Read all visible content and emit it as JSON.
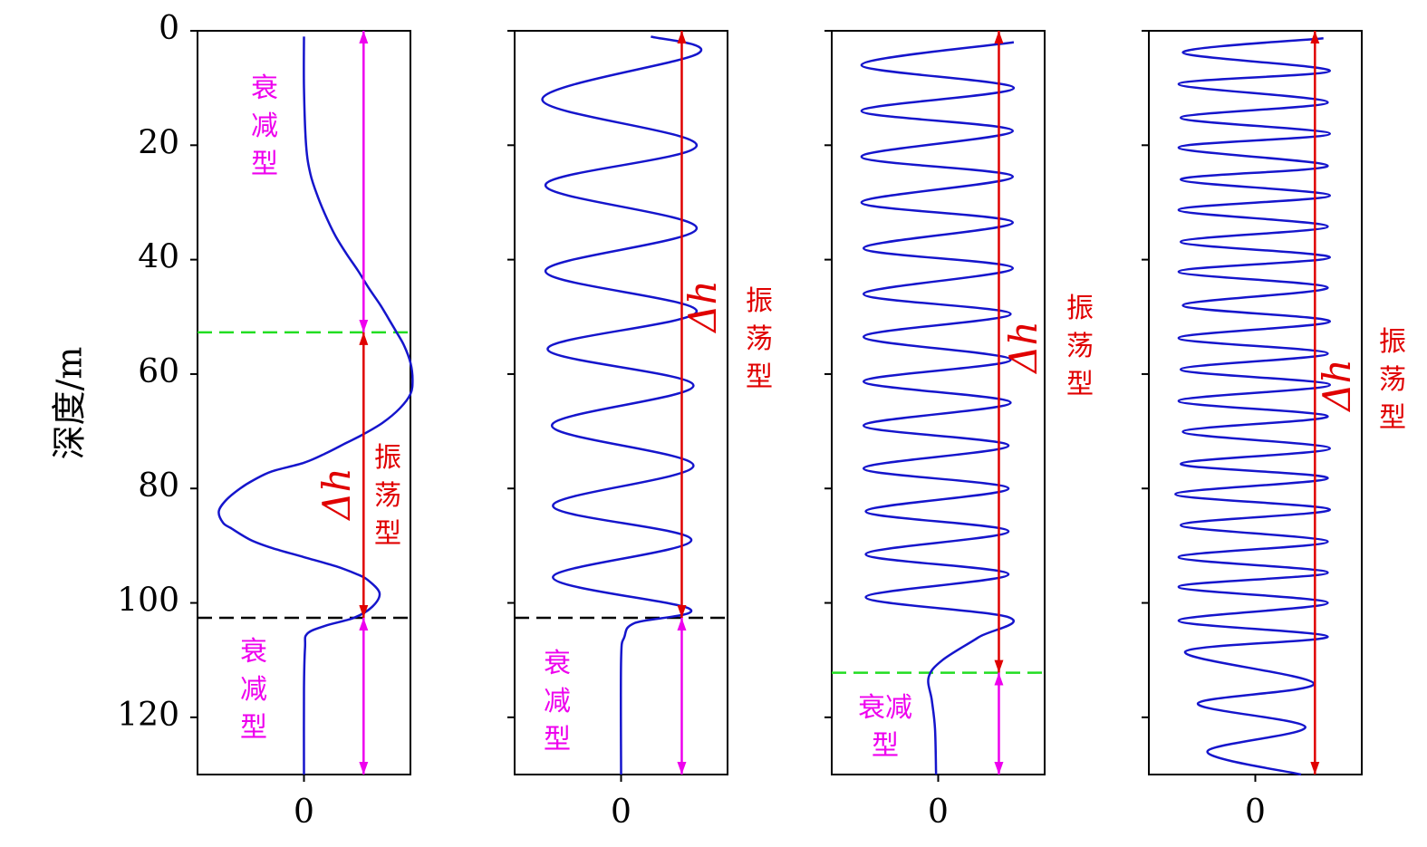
{
  "chart_data": [
    {
      "type": "line",
      "ylabel": "深度/m",
      "ylim": [
        0,
        130
      ],
      "y_inverted": true,
      "yticks": [
        0,
        20,
        40,
        60,
        80,
        100,
        120
      ],
      "show_ytick_labels": true,
      "xlim": [
        -1,
        1
      ],
      "xticks": [
        0
      ],
      "series": [
        {
          "color": "#1515cc",
          "y": [
            1,
            10,
            20,
            25,
            29,
            33,
            36,
            39,
            42,
            45,
            48,
            50.5,
            52.7,
            55,
            58,
            61,
            63.5,
            66,
            68.5,
            70.6,
            72,
            73.8,
            75.5,
            77,
            78.5,
            80,
            82,
            84,
            86,
            87,
            89,
            90.4,
            92,
            93.6,
            95,
            96,
            98.3,
            100.7,
            102.6,
            104,
            105.4,
            107.8,
            115,
            130
          ],
          "x": [
            0,
            0,
            0.02,
            0.06,
            0.13,
            0.22,
            0.3,
            0.4,
            0.51,
            0.61,
            0.72,
            0.8,
            0.87,
            0.94,
            1.0,
            1.02,
            1.0,
            0.9,
            0.74,
            0.55,
            0.4,
            0.21,
            0.0,
            -0.3,
            -0.47,
            -0.6,
            -0.73,
            -0.8,
            -0.76,
            -0.68,
            -0.5,
            -0.3,
            0.0,
            0.3,
            0.5,
            0.6,
            0.71,
            0.64,
            0.47,
            0.2,
            0.03,
            0.01,
            0,
            0
          ]
        }
      ],
      "hlines": [
        {
          "y": 52.7,
          "color": "#22dd22"
        },
        {
          "y": 102.6,
          "color": "#000000"
        }
      ],
      "arrows": [
        {
          "x": 0.56,
          "y": [
            0,
            52.7
          ],
          "color": "#ee00ee"
        },
        {
          "x": 0.56,
          "y": [
            52.7,
            102.6
          ],
          "color": "#e00000"
        },
        {
          "x": 0.56,
          "y": [
            102.6,
            130
          ],
          "color": "#ee00ee"
        }
      ],
      "labels": [
        {
          "text": "衰减型",
          "color": "#ee00ee"
        },
        {
          "text": "Δh",
          "color": "#e00000"
        },
        {
          "text": "振荡型",
          "color": "#e00000"
        },
        {
          "text": "衰减型",
          "color": "#ee00ee"
        }
      ]
    },
    {
      "type": "line",
      "ylim": [
        0,
        130
      ],
      "y_inverted": true,
      "yticks": [
        0,
        20,
        40,
        60,
        80,
        100,
        120
      ],
      "show_ytick_labels": false,
      "xlim": [
        -1,
        1
      ],
      "xticks": [
        0
      ],
      "series": [
        {
          "color": "#1515cc",
          "y": [
            1,
            4,
            12,
            20,
            27,
            34.5,
            42,
            49,
            55.6,
            62,
            69,
            76,
            83,
            89,
            95.5,
            101,
            103.5,
            106,
            110,
            130
          ],
          "x": [
            0.28,
            0.72,
            -0.74,
            0.71,
            -0.71,
            0.71,
            -0.71,
            0.71,
            -0.69,
            0.68,
            -0.65,
            0.68,
            -0.64,
            0.66,
            -0.64,
            0.64,
            0.13,
            0.03,
            0,
            0
          ]
        }
      ],
      "hlines": [
        {
          "y": 102.6,
          "color": "#000000"
        }
      ],
      "arrows": [
        {
          "x": 0.57,
          "y": [
            0,
            102.6
          ],
          "color": "#e00000"
        },
        {
          "x": 0.57,
          "y": [
            102.6,
            130
          ],
          "color": "#ee00ee"
        }
      ],
      "labels": [
        {
          "text": "Δh",
          "color": "#e00000"
        },
        {
          "text": "振荡型",
          "color": "#e00000"
        },
        {
          "text": "衰减型",
          "color": "#ee00ee"
        }
      ]
    },
    {
      "type": "line",
      "ylim": [
        0,
        130
      ],
      "y_inverted": true,
      "yticks": [
        0,
        20,
        40,
        60,
        80,
        100,
        120
      ],
      "show_ytick_labels": false,
      "xlim": [
        -1,
        1
      ],
      "xticks": [
        0
      ],
      "series": [
        {
          "color": "#1515cc",
          "y": [
            2,
            6,
            10,
            14,
            17.5,
            22,
            25.5,
            30,
            33.5,
            38,
            41.5,
            46,
            49.5,
            53.5,
            57.5,
            61.3,
            65,
            69,
            72.5,
            76.5,
            80,
            84,
            87.5,
            91.5,
            95,
            99,
            102.5,
            106,
            110,
            113,
            117,
            122,
            130
          ],
          "x": [
            0.71,
            -0.72,
            0.71,
            -0.72,
            0.7,
            -0.72,
            0.7,
            -0.72,
            0.7,
            -0.7,
            0.7,
            -0.7,
            0.68,
            -0.7,
            0.68,
            -0.7,
            0.68,
            -0.7,
            0.66,
            -0.7,
            0.66,
            -0.68,
            0.66,
            -0.68,
            0.66,
            -0.68,
            0.66,
            0.38,
            0.04,
            -0.09,
            -0.06,
            -0.03,
            -0.02
          ]
        }
      ],
      "hlines": [
        {
          "y": 112.2,
          "color": "#22dd22"
        }
      ],
      "arrows": [
        {
          "x": 0.57,
          "y": [
            0,
            112.2
          ],
          "color": "#e00000"
        },
        {
          "x": 0.57,
          "y": [
            112.2,
            130
          ],
          "color": "#ee00ee"
        }
      ],
      "labels": [
        {
          "text": "Δh",
          "color": "#e00000"
        },
        {
          "text": "振荡型",
          "color": "#e00000"
        },
        {
          "text": "衰减型",
          "color": "#ee00ee"
        }
      ]
    },
    {
      "type": "line",
      "ylim": [
        0,
        130
      ],
      "y_inverted": true,
      "yticks": [
        0,
        20,
        40,
        60,
        80,
        100,
        120
      ],
      "show_ytick_labels": false,
      "xlim": [
        -1,
        1
      ],
      "xticks": [
        0
      ],
      "series": [
        {
          "color": "#1515cc",
          "y": [
            1.3,
            3.8,
            7.0,
            9.3,
            12.5,
            15.2,
            18.0,
            20.4,
            23.6,
            26.0,
            28.8,
            31.3,
            34.2,
            36.9,
            39.6,
            42.1,
            44.9,
            48.0,
            50.8,
            53.7,
            56.4,
            59.2,
            61.9,
            64.7,
            67.4,
            70.1,
            73.0,
            75.7,
            78.2,
            81.0,
            83.7,
            86.4,
            89.3,
            92.0,
            94.7,
            97.2,
            100.0,
            103.1,
            105.9,
            108.6,
            114.1,
            117.6,
            121.7,
            126.0,
            130
          ],
          "x": [
            0.64,
            -0.68,
            0.7,
            -0.72,
            0.68,
            -0.7,
            0.7,
            -0.72,
            0.68,
            -0.7,
            0.7,
            -0.72,
            0.68,
            -0.7,
            0.7,
            -0.72,
            0.68,
            -0.68,
            0.7,
            -0.72,
            0.68,
            -0.7,
            0.7,
            -0.72,
            0.68,
            -0.68,
            0.7,
            -0.7,
            0.68,
            -0.75,
            0.7,
            -0.7,
            0.68,
            -0.72,
            0.68,
            -0.72,
            0.68,
            -0.72,
            0.68,
            -0.66,
            0.55,
            -0.54,
            0.47,
            -0.45,
            0.43
          ]
        }
      ],
      "hlines": [],
      "arrows": [
        {
          "x": 0.56,
          "y": [
            0,
            130
          ],
          "color": "#e00000"
        }
      ],
      "labels": [
        {
          "text": "Δh",
          "color": "#e00000"
        },
        {
          "text": "振荡型",
          "color": "#e00000"
        }
      ]
    }
  ]
}
